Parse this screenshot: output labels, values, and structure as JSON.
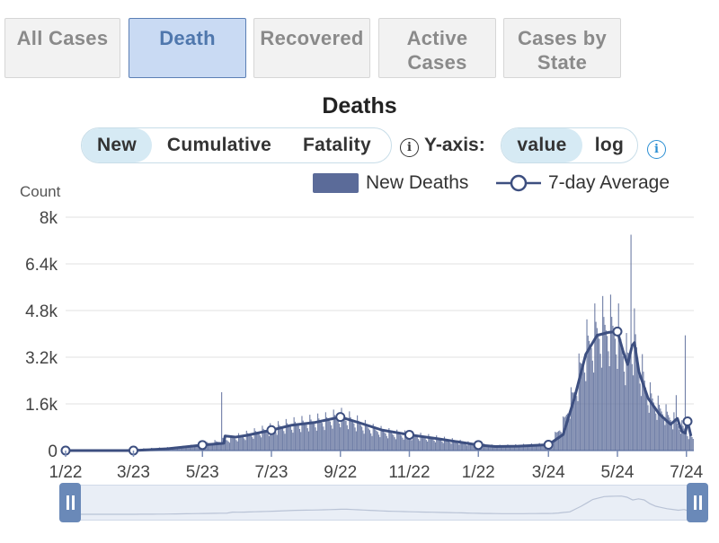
{
  "tabs": [
    {
      "label": "All Cases",
      "active": false
    },
    {
      "label": "Death",
      "active": true
    },
    {
      "label": "Recovered",
      "active": false
    },
    {
      "label": "Active Cases",
      "active": false
    },
    {
      "label": "Cases by State",
      "active": false
    }
  ],
  "mode_toggle": {
    "options": [
      "New",
      "Cumulative",
      "Fatality"
    ],
    "selected": "New"
  },
  "yaxis_toggle": {
    "label": "Y-axis:",
    "options": [
      "value",
      "log"
    ],
    "selected": "value"
  },
  "info_icon": "i",
  "icons": {
    "info": "info-icon",
    "handle": "slider-handle-icon"
  },
  "colors": {
    "bars": "#5b6b99",
    "line": "#3d4f80",
    "active_tab": "#c9daf3",
    "selected_pill": "#d6eaf4"
  },
  "chart_data": {
    "type": "bar",
    "title": "Deaths",
    "ylabel": "Count",
    "ylim": [
      0,
      8000
    ],
    "yticks": [
      0,
      1600,
      3200,
      4800,
      6400,
      8000
    ],
    "ytick_labels": [
      "0",
      "1.6k",
      "3.2k",
      "4.8k",
      "6.4k",
      "8k"
    ],
    "xtick_labels": [
      "1/22",
      "3/23",
      "5/23",
      "7/23",
      "9/22",
      "11/22",
      "1/22",
      "3/24",
      "5/24",
      "7/24"
    ],
    "xtick_day_index": [
      0,
      60,
      121,
      182,
      243,
      304,
      365,
      427,
      488,
      549
    ],
    "legend": {
      "position": "top-right",
      "items": [
        "New Deaths",
        "7-day Average"
      ]
    },
    "grid": true,
    "series": [
      {
        "name": "New Deaths",
        "kind": "bar",
        "daily_anchors": [
          [
            0,
            0
          ],
          [
            50,
            30
          ],
          [
            100,
            110
          ],
          [
            120,
            190
          ],
          [
            135,
            300
          ],
          [
            150,
            430
          ],
          [
            165,
            570
          ],
          [
            182,
            730
          ],
          [
            200,
            870
          ],
          [
            215,
            940
          ],
          [
            230,
            1010
          ],
          [
            243,
            1140
          ],
          [
            255,
            980
          ],
          [
            270,
            720
          ],
          [
            290,
            560
          ],
          [
            304,
            520
          ],
          [
            320,
            440
          ],
          [
            340,
            340
          ],
          [
            360,
            220
          ],
          [
            380,
            150
          ],
          [
            400,
            170
          ],
          [
            420,
            200
          ],
          [
            430,
            320
          ],
          [
            440,
            900
          ],
          [
            450,
            2000
          ],
          [
            460,
            3400
          ],
          [
            470,
            4000
          ],
          [
            480,
            4150
          ],
          [
            488,
            4000
          ],
          [
            493,
            3400
          ],
          [
            497,
            3000
          ],
          [
            500,
            3550
          ],
          [
            503,
            3750
          ],
          [
            508,
            2800
          ],
          [
            515,
            1900
          ],
          [
            525,
            1400
          ],
          [
            535,
            1100
          ],
          [
            545,
            800
          ],
          [
            555,
            400
          ]
        ],
        "spikes": [
          [
            138,
            2000
          ],
          [
            500,
            7400
          ],
          [
            540,
            1900
          ],
          [
            548,
            3950
          ]
        ]
      },
      {
        "name": "7-day Average",
        "kind": "line",
        "points": [
          [
            0,
            0
          ],
          [
            30,
            0
          ],
          [
            60,
            0
          ],
          [
            90,
            60
          ],
          [
            121,
            190
          ],
          [
            140,
            250
          ],
          [
            141,
            500
          ],
          [
            150,
            460
          ],
          [
            160,
            520
          ],
          [
            182,
            700
          ],
          [
            200,
            870
          ],
          [
            220,
            960
          ],
          [
            243,
            1150
          ],
          [
            260,
            950
          ],
          [
            280,
            700
          ],
          [
            304,
            540
          ],
          [
            330,
            400
          ],
          [
            350,
            280
          ],
          [
            365,
            190
          ],
          [
            380,
            140
          ],
          [
            400,
            150
          ],
          [
            427,
            200
          ],
          [
            440,
            550
          ],
          [
            450,
            1800
          ],
          [
            460,
            3300
          ],
          [
            470,
            3950
          ],
          [
            480,
            4050
          ],
          [
            488,
            4080
          ],
          [
            493,
            3400
          ],
          [
            497,
            2950
          ],
          [
            501,
            3600
          ],
          [
            503,
            3700
          ],
          [
            507,
            2700
          ],
          [
            515,
            1800
          ],
          [
            525,
            1250
          ],
          [
            535,
            900
          ],
          [
            541,
            1100
          ],
          [
            545,
            650
          ],
          [
            548,
            600
          ],
          [
            550,
            1000
          ],
          [
            553,
            500
          ]
        ],
        "markers": [
          0,
          60,
          121,
          182,
          243,
          304,
          365,
          427,
          488,
          550
        ]
      }
    ]
  }
}
